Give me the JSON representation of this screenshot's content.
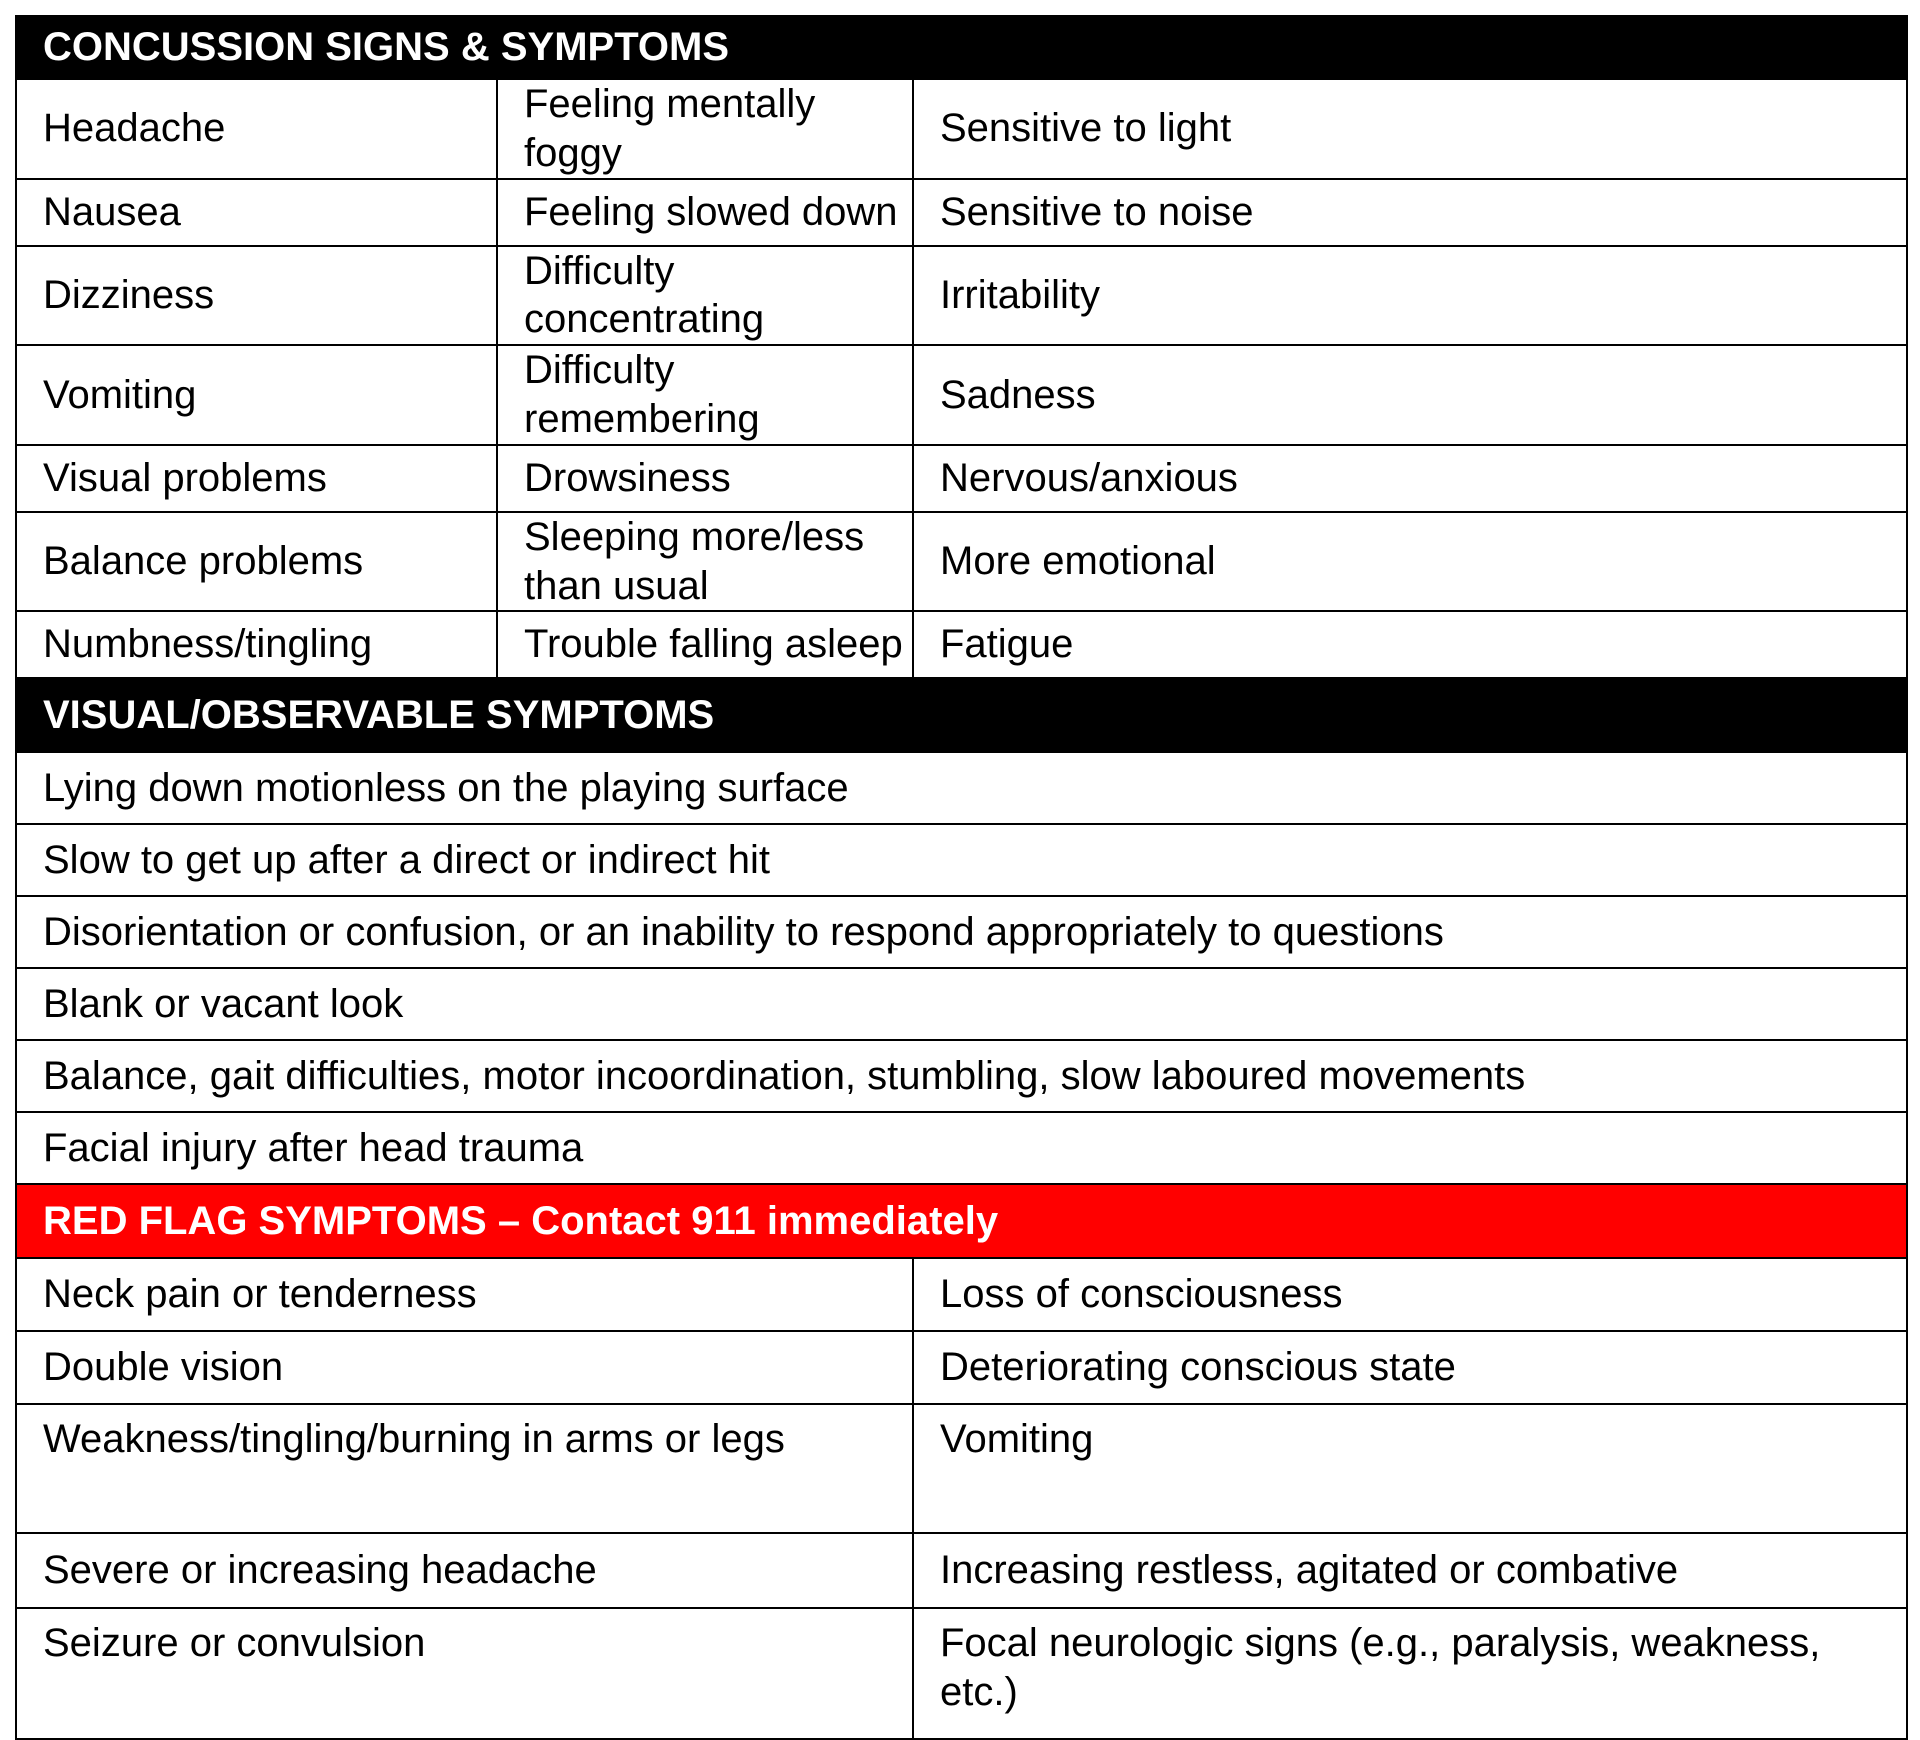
{
  "sections": {
    "signs": {
      "title": "CONCUSSION SIGNS & SYMPTOMS",
      "rows": [
        [
          "Headache",
          "Feeling mentally foggy",
          "Sensitive to light"
        ],
        [
          "Nausea",
          "Feeling slowed down",
          "Sensitive to noise"
        ],
        [
          "Dizziness",
          "Difficulty concentrating",
          "Irritability"
        ],
        [
          "Vomiting",
          "Difficulty remembering",
          "Sadness"
        ],
        [
          "Visual problems",
          "Drowsiness",
          "Nervous/anxious"
        ],
        [
          "Balance problems",
          "Sleeping more/less than usual",
          "More emotional"
        ],
        [
          "Numbness/tingling",
          "Trouble falling asleep",
          "Fatigue"
        ]
      ]
    },
    "visual": {
      "title": "VISUAL/OBSERVABLE SYMPTOMS",
      "rows": [
        "Lying down motionless on the playing surface",
        "Slow to get up after a direct or indirect hit",
        "Disorientation or confusion, or an inability to respond appropriately to questions",
        "Blank or vacant look",
        "Balance, gait difficulties, motor incoordination, stumbling, slow laboured movements",
        "Facial injury after head trauma"
      ]
    },
    "red_flag": {
      "title": "RED FLAG SYMPTOMS – Contact 911 immediately",
      "rows": [
        [
          "Neck pain or tenderness",
          "Loss of consciousness"
        ],
        [
          "Double vision",
          "Deteriorating conscious state"
        ],
        [
          "Weakness/tingling/burning in arms or legs",
          "Vomiting"
        ],
        [
          "Severe or increasing headache",
          "Increasing restless, agitated or combative"
        ],
        [
          "Seizure or convulsion",
          "Focal neurologic signs (e.g., paralysis, weakness, etc.)"
        ]
      ]
    }
  },
  "colors": {
    "header_bg": "#000000",
    "red_flag_bg": "#ff0000",
    "header_text": "#ffffff"
  }
}
